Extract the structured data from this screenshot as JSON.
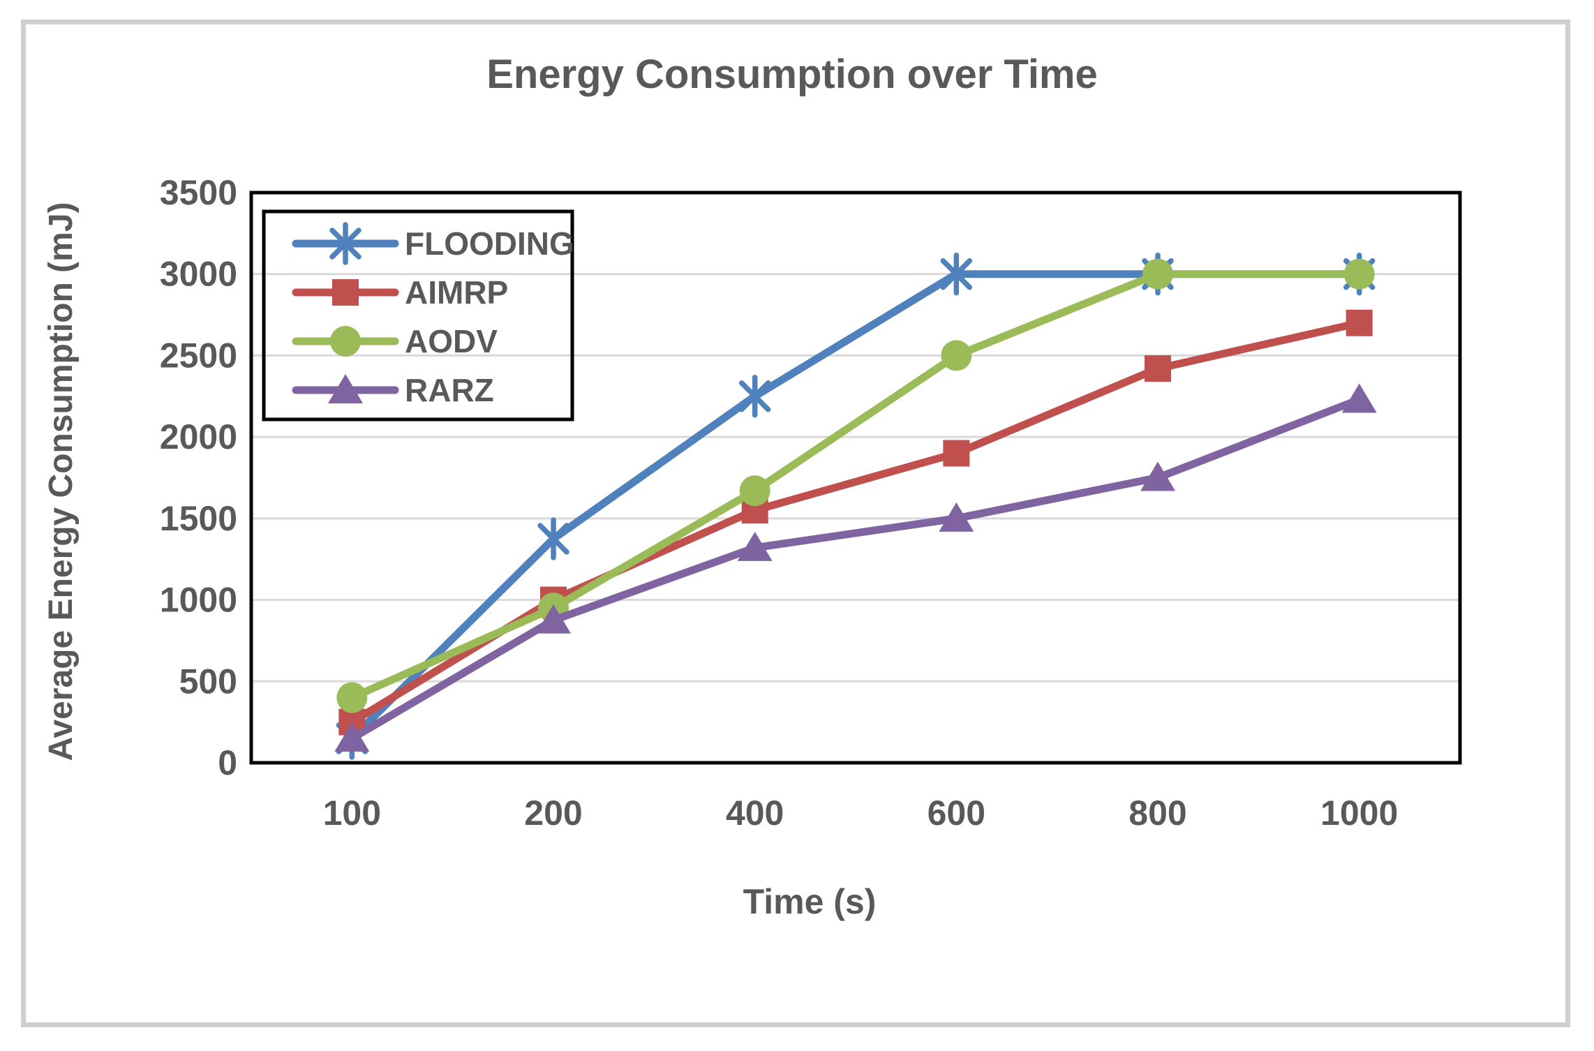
{
  "figure": {
    "border_color": "#d0cece",
    "background_color": "#ffffff",
    "text_color": "#595959",
    "gridline_color": "#d9d9d9",
    "frame_color": "#000000"
  },
  "chart_data": {
    "type": "line",
    "title": "Energy Consumption over Time",
    "xlabel": "Time (s)",
    "ylabel": "Average Energy Consumption (mJ)",
    "categories": [
      "100",
      "200",
      "400",
      "600",
      "800",
      "1000"
    ],
    "y_ticks": [
      "0",
      "500",
      "1000",
      "1500",
      "2000",
      "2500",
      "3000",
      "3500"
    ],
    "ylim": [
      0,
      3500
    ],
    "grid": true,
    "legend_position": "top-left-inside",
    "series": [
      {
        "name": "FLOODING",
        "color": "#4F81BD",
        "marker": "asterisk",
        "values": [
          150,
          1375,
          2250,
          3000,
          3000,
          3000
        ]
      },
      {
        "name": "AIMRP",
        "color": "#C0504D",
        "marker": "square",
        "values": [
          250,
          1000,
          1550,
          1900,
          2420,
          2700
        ]
      },
      {
        "name": "AODV",
        "color": "#9BBB59",
        "marker": "circle",
        "values": [
          400,
          950,
          1670,
          2500,
          3000,
          3000
        ]
      },
      {
        "name": "RARZ",
        "color": "#8064A2",
        "marker": "triangle",
        "values": [
          150,
          875,
          1320,
          1500,
          1750,
          2230
        ]
      }
    ]
  }
}
